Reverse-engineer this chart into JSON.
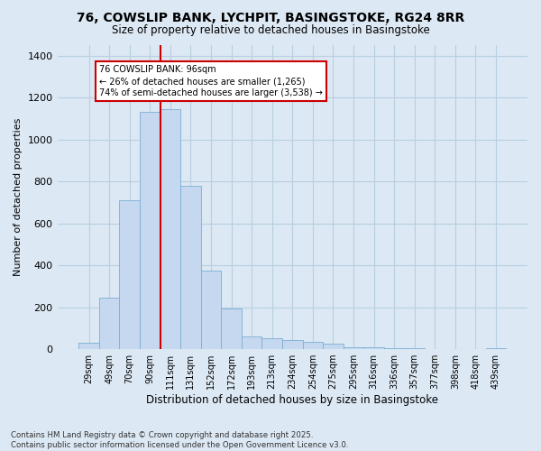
{
  "title": "76, COWSLIP BANK, LYCHPIT, BASINGSTOKE, RG24 8RR",
  "subtitle": "Size of property relative to detached houses in Basingstoke",
  "xlabel": "Distribution of detached houses by size in Basingstoke",
  "ylabel": "Number of detached properties",
  "bar_color": "#c5d8ef",
  "bar_edge_color": "#7bafd4",
  "grid_color": "#b8cfe0",
  "background_color": "#dce8f4",
  "categories": [
    "29sqm",
    "49sqm",
    "70sqm",
    "90sqm",
    "111sqm",
    "131sqm",
    "152sqm",
    "172sqm",
    "193sqm",
    "213sqm",
    "234sqm",
    "254sqm",
    "275sqm",
    "295sqm",
    "316sqm",
    "336sqm",
    "357sqm",
    "377sqm",
    "398sqm",
    "418sqm",
    "439sqm"
  ],
  "values": [
    30,
    245,
    710,
    1130,
    1145,
    780,
    375,
    195,
    60,
    50,
    45,
    35,
    25,
    10,
    8,
    5,
    3,
    2,
    1,
    1,
    5
  ],
  "ylim": [
    0,
    1450
  ],
  "yticks": [
    0,
    200,
    400,
    600,
    800,
    1000,
    1200,
    1400
  ],
  "annotation_text": "76 COWSLIP BANK: 96sqm\n← 26% of detached houses are smaller (1,265)\n74% of semi-detached houses are larger (3,538) →",
  "annotation_box_color": "#ffffff",
  "annotation_border_color": "#cc0000",
  "footnote": "Contains HM Land Registry data © Crown copyright and database right 2025.\nContains public sector information licensed under the Open Government Licence v3.0.",
  "vline_color": "#cc0000",
  "vline_x": 3.5
}
